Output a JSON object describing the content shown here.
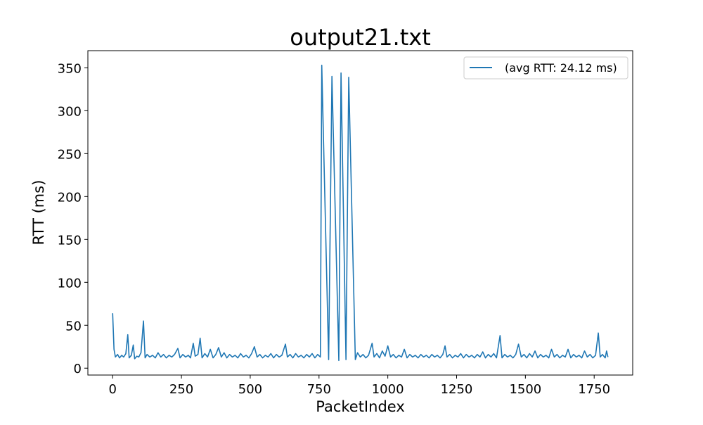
{
  "chart_data": {
    "type": "line",
    "title": "output21.txt",
    "xlabel": "PacketIndex",
    "ylabel": "RTT (ms)",
    "xlim": [
      -90,
      1890
    ],
    "ylim": [
      -8,
      370
    ],
    "xticks": [
      0,
      250,
      500,
      750,
      1000,
      1250,
      1500,
      1750
    ],
    "yticks": [
      0,
      50,
      100,
      150,
      200,
      250,
      300,
      350
    ],
    "grid": false,
    "legend": "top-right",
    "series": [
      {
        "name": "(avg RTT: 24.12 ms)",
        "color": "#1f77b4",
        "points": [
          [
            0,
            64
          ],
          [
            5,
            22
          ],
          [
            10,
            13
          ],
          [
            18,
            16
          ],
          [
            25,
            12
          ],
          [
            33,
            15
          ],
          [
            40,
            13
          ],
          [
            48,
            17
          ],
          [
            55,
            39
          ],
          [
            60,
            12
          ],
          [
            68,
            15
          ],
          [
            75,
            27
          ],
          [
            80,
            11
          ],
          [
            88,
            14
          ],
          [
            95,
            13
          ],
          [
            103,
            18
          ],
          [
            112,
            55
          ],
          [
            118,
            12
          ],
          [
            125,
            16
          ],
          [
            135,
            13
          ],
          [
            145,
            15
          ],
          [
            155,
            12
          ],
          [
            165,
            18
          ],
          [
            175,
            13
          ],
          [
            185,
            16
          ],
          [
            195,
            12
          ],
          [
            205,
            15
          ],
          [
            215,
            13
          ],
          [
            225,
            16
          ],
          [
            237,
            23
          ],
          [
            245,
            12
          ],
          [
            255,
            16
          ],
          [
            265,
            13
          ],
          [
            275,
            15
          ],
          [
            283,
            12
          ],
          [
            293,
            29
          ],
          [
            300,
            14
          ],
          [
            310,
            16
          ],
          [
            318,
            35
          ],
          [
            325,
            12
          ],
          [
            335,
            17
          ],
          [
            345,
            13
          ],
          [
            355,
            22
          ],
          [
            365,
            12
          ],
          [
            375,
            16
          ],
          [
            385,
            24
          ],
          [
            395,
            13
          ],
          [
            405,
            18
          ],
          [
            415,
            12
          ],
          [
            425,
            16
          ],
          [
            435,
            13
          ],
          [
            445,
            15
          ],
          [
            455,
            12
          ],
          [
            465,
            17
          ],
          [
            475,
            13
          ],
          [
            485,
            15
          ],
          [
            495,
            12
          ],
          [
            505,
            17
          ],
          [
            515,
            25
          ],
          [
            525,
            13
          ],
          [
            535,
            16
          ],
          [
            545,
            12
          ],
          [
            555,
            15
          ],
          [
            565,
            13
          ],
          [
            575,
            17
          ],
          [
            585,
            12
          ],
          [
            595,
            16
          ],
          [
            605,
            13
          ],
          [
            615,
            15
          ],
          [
            628,
            28
          ],
          [
            635,
            13
          ],
          [
            645,
            16
          ],
          [
            655,
            12
          ],
          [
            665,
            17
          ],
          [
            675,
            13
          ],
          [
            685,
            15
          ],
          [
            695,
            12
          ],
          [
            705,
            16
          ],
          [
            715,
            13
          ],
          [
            725,
            17
          ],
          [
            735,
            12
          ],
          [
            745,
            16
          ],
          [
            755,
            13
          ],
          [
            760,
            353
          ],
          [
            785,
            10
          ],
          [
            797,
            340
          ],
          [
            822,
            9
          ],
          [
            830,
            344
          ],
          [
            848,
            10
          ],
          [
            858,
            339
          ],
          [
            882,
            10
          ],
          [
            890,
            18
          ],
          [
            900,
            13
          ],
          [
            910,
            16
          ],
          [
            920,
            12
          ],
          [
            930,
            15
          ],
          [
            943,
            29
          ],
          [
            950,
            13
          ],
          [
            960,
            17
          ],
          [
            970,
            12
          ],
          [
            980,
            20
          ],
          [
            990,
            14
          ],
          [
            1000,
            26
          ],
          [
            1010,
            13
          ],
          [
            1020,
            16
          ],
          [
            1030,
            12
          ],
          [
            1040,
            15
          ],
          [
            1050,
            13
          ],
          [
            1060,
            22
          ],
          [
            1070,
            12
          ],
          [
            1080,
            16
          ],
          [
            1090,
            13
          ],
          [
            1100,
            15
          ],
          [
            1110,
            12
          ],
          [
            1120,
            16
          ],
          [
            1130,
            13
          ],
          [
            1140,
            15
          ],
          [
            1150,
            12
          ],
          [
            1160,
            16
          ],
          [
            1170,
            13
          ],
          [
            1180,
            15
          ],
          [
            1190,
            12
          ],
          [
            1200,
            16
          ],
          [
            1208,
            26
          ],
          [
            1215,
            13
          ],
          [
            1225,
            16
          ],
          [
            1235,
            12
          ],
          [
            1245,
            15
          ],
          [
            1255,
            13
          ],
          [
            1265,
            17
          ],
          [
            1275,
            12
          ],
          [
            1285,
            16
          ],
          [
            1295,
            13
          ],
          [
            1305,
            15
          ],
          [
            1315,
            12
          ],
          [
            1325,
            16
          ],
          [
            1335,
            13
          ],
          [
            1345,
            19
          ],
          [
            1355,
            12
          ],
          [
            1365,
            16
          ],
          [
            1375,
            13
          ],
          [
            1385,
            17
          ],
          [
            1395,
            12
          ],
          [
            1400,
            22
          ],
          [
            1408,
            38
          ],
          [
            1415,
            12
          ],
          [
            1425,
            16
          ],
          [
            1435,
            13
          ],
          [
            1445,
            15
          ],
          [
            1455,
            12
          ],
          [
            1465,
            16
          ],
          [
            1475,
            28
          ],
          [
            1485,
            13
          ],
          [
            1495,
            16
          ],
          [
            1505,
            12
          ],
          [
            1515,
            17
          ],
          [
            1525,
            13
          ],
          [
            1535,
            20
          ],
          [
            1545,
            12
          ],
          [
            1555,
            16
          ],
          [
            1565,
            13
          ],
          [
            1575,
            15
          ],
          [
            1585,
            12
          ],
          [
            1595,
            22
          ],
          [
            1605,
            13
          ],
          [
            1615,
            16
          ],
          [
            1625,
            12
          ],
          [
            1635,
            15
          ],
          [
            1645,
            13
          ],
          [
            1655,
            22
          ],
          [
            1665,
            12
          ],
          [
            1675,
            16
          ],
          [
            1685,
            13
          ],
          [
            1695,
            15
          ],
          [
            1705,
            12
          ],
          [
            1715,
            20
          ],
          [
            1725,
            13
          ],
          [
            1735,
            16
          ],
          [
            1745,
            12
          ],
          [
            1755,
            15
          ],
          [
            1765,
            41
          ],
          [
            1772,
            13
          ],
          [
            1780,
            16
          ],
          [
            1790,
            12
          ],
          [
            1795,
            20
          ],
          [
            1800,
            13
          ]
        ]
      }
    ]
  }
}
